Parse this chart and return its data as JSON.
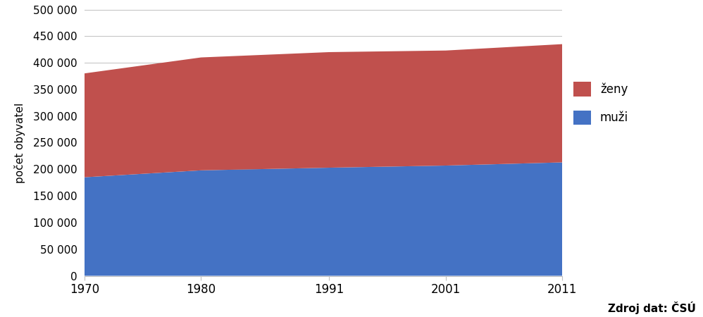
{
  "years": [
    1970,
    1980,
    1991,
    2001,
    2011
  ],
  "muzi": [
    185000,
    198000,
    203000,
    207000,
    213000
  ],
  "zeny": [
    195000,
    212000,
    217000,
    216000,
    222000
  ],
  "color_muzi": "#4472C4",
  "color_zeny": "#C0504D",
  "ylabel": "počet obyvatel",
  "ylim": [
    0,
    500000
  ],
  "yticks": [
    0,
    50000,
    100000,
    150000,
    200000,
    250000,
    300000,
    350000,
    400000,
    450000,
    500000
  ],
  "xticks": [
    1970,
    1980,
    1991,
    2001,
    2011
  ],
  "legend_zeny": "ženy",
  "legend_muzi": "muži",
  "source_text": "Zdroj dat: ČSÚ",
  "background_color": "#FFFFFF"
}
